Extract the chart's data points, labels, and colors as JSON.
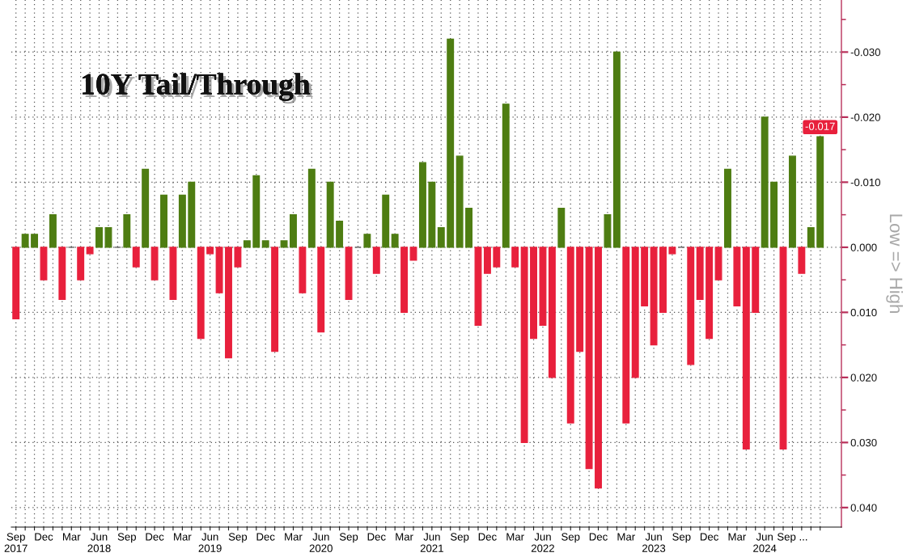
{
  "chart_data": {
    "type": "bar",
    "title": "10Y Tail/Through",
    "ylabel": "Low => High",
    "categories": [
      "Sep\n2017",
      null,
      null,
      "Dec",
      null,
      null,
      "Mar",
      null,
      null,
      "Jun\n2018",
      null,
      null,
      "Sep",
      null,
      null,
      "Dec",
      null,
      null,
      "Mar",
      null,
      null,
      "Jun\n2019",
      null,
      null,
      "Sep",
      null,
      null,
      "Dec",
      null,
      null,
      "Mar",
      null,
      null,
      "Jun\n2020",
      null,
      null,
      "Sep",
      null,
      null,
      "Dec",
      null,
      null,
      "Mar",
      null,
      null,
      "Jun\n2021",
      null,
      null,
      "Sep",
      null,
      null,
      "Dec",
      null,
      null,
      "Mar",
      null,
      null,
      "Jun\n2022",
      null,
      null,
      "Sep",
      null,
      null,
      "Dec",
      null,
      null,
      "Mar",
      null,
      null,
      "Jun\n2023",
      null,
      null,
      "Sep",
      null,
      null,
      "Dec",
      null,
      null,
      "Mar",
      null,
      null,
      "Jun\n2024",
      null,
      null,
      "Sep ...",
      null,
      null,
      null
    ],
    "values": [
      0.011,
      -0.002,
      -0.002,
      0.005,
      -0.005,
      0.008,
      0,
      0.005,
      0.001,
      -0.003,
      -0.003,
      0,
      -0.005,
      0.003,
      -0.012,
      0.005,
      -0.008,
      0.008,
      -0.008,
      -0.01,
      0.014,
      0.001,
      0.007,
      0.017,
      0.003,
      -0.001,
      -0.011,
      -0.001,
      0.016,
      -0.001,
      -0.005,
      0.007,
      -0.012,
      0.013,
      -0.01,
      -0.004,
      0.008,
      0,
      -0.002,
      0.004,
      -0.008,
      -0.002,
      0.01,
      0.002,
      -0.013,
      -0.01,
      -0.003,
      -0.032,
      -0.014,
      -0.006,
      0.012,
      0.004,
      0.003,
      -0.022,
      0.003,
      0.03,
      0.014,
      0.012,
      0.02,
      -0.006,
      0.027,
      0.016,
      0.034,
      0.037,
      -0.005,
      -0.03,
      0.027,
      0.02,
      0.009,
      0.015,
      0.01,
      0.001,
      0,
      0.018,
      0.008,
      0.014,
      0.005,
      -0.012,
      0.009,
      0.031,
      0.01,
      -0.02,
      -0.01,
      0.031,
      -0.014,
      0.004,
      -0.003,
      -0.017
    ],
    "colors": [
      "#e8203c",
      "#4e7d12",
      "#4e7d12",
      "#e8203c",
      "#4e7d12",
      "#e8203c",
      "#555555",
      "#e8203c",
      "#e8203c",
      "#4e7d12",
      "#4e7d12",
      "#555555",
      "#4e7d12",
      "#e8203c",
      "#4e7d12",
      "#e8203c",
      "#4e7d12",
      "#e8203c",
      "#4e7d12",
      "#4e7d12",
      "#e8203c",
      "#e8203c",
      "#e8203c",
      "#e8203c",
      "#e8203c",
      "#4e7d12",
      "#4e7d12",
      "#4e7d12",
      "#e8203c",
      "#4e7d12",
      "#4e7d12",
      "#e8203c",
      "#4e7d12",
      "#e8203c",
      "#4e7d12",
      "#4e7d12",
      "#e8203c",
      "#555555",
      "#4e7d12",
      "#e8203c",
      "#4e7d12",
      "#4e7d12",
      "#e8203c",
      "#e8203c",
      "#4e7d12",
      "#4e7d12",
      "#4e7d12",
      "#4e7d12",
      "#4e7d12",
      "#4e7d12",
      "#e8203c",
      "#e8203c",
      "#e8203c",
      "#4e7d12",
      "#e8203c",
      "#e8203c",
      "#e8203c",
      "#e8203c",
      "#e8203c",
      "#4e7d12",
      "#e8203c",
      "#e8203c",
      "#e8203c",
      "#e8203c",
      "#4e7d12",
      "#4e7d12",
      "#e8203c",
      "#e8203c",
      "#e8203c",
      "#e8203c",
      "#e8203c",
      "#e8203c",
      "#555555",
      "#e8203c",
      "#e8203c",
      "#e8203c",
      "#e8203c",
      "#4e7d12",
      "#e8203c",
      "#e8203c",
      "#e8203c",
      "#4e7d12",
      "#4e7d12",
      "#e8203c",
      "#4e7d12",
      "#e8203c",
      "#4e7d12",
      "#4e7d12"
    ],
    "value_labels": [
      null,
      null,
      null,
      null,
      null,
      null,
      null,
      null,
      null,
      null,
      null,
      null,
      null,
      null,
      null,
      null,
      null,
      null,
      null,
      null,
      null,
      null,
      null,
      null,
      null,
      null,
      null,
      null,
      null,
      null,
      null,
      null,
      null,
      null,
      null,
      null,
      null,
      null,
      null,
      null,
      null,
      null,
      null,
      null,
      null,
      null,
      null,
      null,
      null,
      null,
      null,
      null,
      null,
      null,
      null,
      null,
      null,
      null,
      null,
      null,
      null,
      null,
      null,
      null,
      null,
      null,
      null,
      null,
      null,
      null,
      null,
      null,
      null,
      null,
      null,
      null,
      null,
      null,
      null,
      null,
      null,
      null,
      null,
      null,
      null,
      null,
      null,
      "-0.017"
    ],
    "ylim": [
      0.043,
      -0.038
    ],
    "yticks": [
      {
        "value": -0.03,
        "label": "-0.030"
      },
      {
        "value": -0.02,
        "label": "-0.020"
      },
      {
        "value": -0.01,
        "label": "-0.010"
      },
      {
        "value": 0,
        "label": "0.000"
      },
      {
        "value": 0.01,
        "label": "0.010"
      },
      {
        "value": 0.02,
        "label": "0.020"
      },
      {
        "value": 0.03,
        "label": "0.030"
      },
      {
        "value": 0.04,
        "label": "0.040"
      }
    ],
    "grid": true
  }
}
